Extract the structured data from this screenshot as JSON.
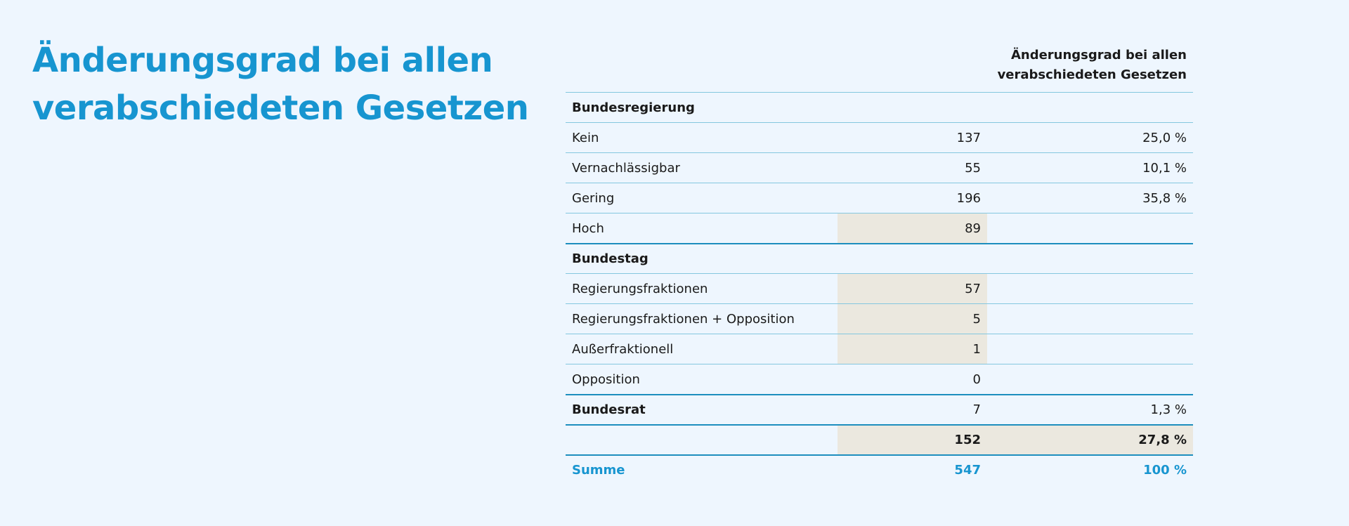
{
  "title_line1": "Änderungsgrad bei allen",
  "title_line2": "verabschiedeten Gesetzen",
  "header": {
    "col3_line1": "Änderungsgrad bei allen",
    "col3_line2": "verabschiedeten Gesetzen"
  },
  "rows": [
    {
      "label": "Bundesregierung",
      "value": "",
      "percent": ""
    },
    {
      "label": "Kein",
      "value": "137",
      "percent": "25,0 %"
    },
    {
      "label": "Vernachlässigbar",
      "value": "55",
      "percent": "10,1 %"
    },
    {
      "label": "Gering",
      "value": "196",
      "percent": "35,8 %"
    },
    {
      "label": "Hoch",
      "value": "89",
      "percent": ""
    },
    {
      "label": "Bundestag",
      "value": "",
      "percent": ""
    },
    {
      "label": "Regierungsfraktionen",
      "value": "57",
      "percent": ""
    },
    {
      "label": "Regierungsfraktionen + Opposition",
      "value": "5",
      "percent": ""
    },
    {
      "label": "Außerfraktionell",
      "value": "1",
      "percent": ""
    },
    {
      "label": "Opposition",
      "value": "0",
      "percent": ""
    },
    {
      "label": "Bundesrat",
      "value": "7",
      "percent": "1,3 %"
    },
    {
      "label": "",
      "value": "152",
      "percent": "27,8 %"
    },
    {
      "label": "Summe",
      "value": "547",
      "percent": "100 %"
    }
  ]
}
